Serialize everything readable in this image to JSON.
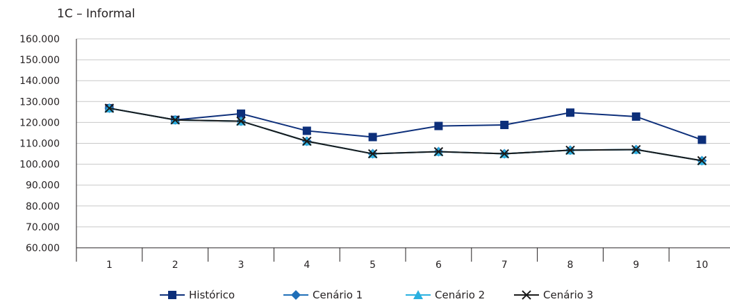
{
  "chart_data": {
    "type": "line",
    "title": "1C – Informal",
    "xlabel": "",
    "ylabel": "",
    "categories": [
      "1",
      "2",
      "3",
      "4",
      "5",
      "6",
      "7",
      "8",
      "9",
      "10"
    ],
    "y_tick_labels": [
      "60.000",
      "70.000",
      "80.000",
      "90.000",
      "100.000",
      "110.000",
      "120.000",
      "130.000",
      "140.000",
      "150.000",
      "160.000"
    ],
    "ylim": [
      60000,
      160000
    ],
    "grid": true,
    "legend_position": "bottom",
    "series": [
      {
        "name": "Histórico",
        "color": "#0d2f7a",
        "marker": "square",
        "values": [
          126800,
          121200,
          124200,
          116000,
          113000,
          118300,
          118800,
          124700,
          122800,
          111700
        ]
      },
      {
        "name": "Cenário 1",
        "color": "#1f6fb8",
        "marker": "diamond",
        "values": [
          126800,
          121200,
          120600,
          111000,
          105000,
          106000,
          105000,
          106700,
          107000,
          101700
        ]
      },
      {
        "name": "Cenário 2",
        "color": "#2ab0e0",
        "marker": "triangle",
        "values": [
          126800,
          121200,
          120600,
          111000,
          105000,
          106000,
          105000,
          106700,
          107000,
          101700
        ]
      },
      {
        "name": "Cenário 3",
        "color": "#1a1a1a",
        "marker": "x",
        "values": [
          126800,
          121200,
          120600,
          111000,
          105000,
          106000,
          105000,
          106700,
          107000,
          101700
        ]
      }
    ]
  }
}
